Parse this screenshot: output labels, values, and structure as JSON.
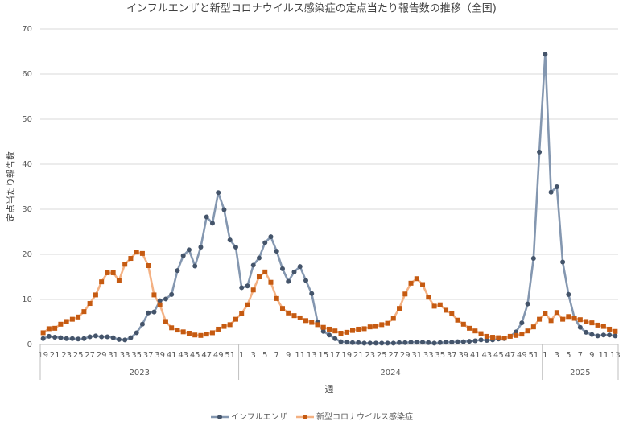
{
  "chart_data": {
    "type": "line",
    "title": "インフルエンザと新型コロナウイルス感染症の定点当たり報告数の推移（全国)",
    "x_label": "週",
    "y_label": "定点当たり報告数",
    "categories": [
      19,
      null,
      21,
      null,
      23,
      null,
      25,
      null,
      27,
      null,
      29,
      null,
      31,
      null,
      33,
      null,
      35,
      null,
      37,
      null,
      39,
      null,
      41,
      null,
      43,
      null,
      45,
      null,
      47,
      null,
      49,
      null,
      51,
      null,
      1,
      null,
      3,
      null,
      5,
      null,
      7,
      null,
      9,
      null,
      11,
      null,
      13,
      null,
      15,
      null,
      17,
      null,
      19,
      null,
      21,
      null,
      23,
      null,
      25,
      null,
      27,
      null,
      29,
      null,
      31,
      null,
      33,
      null,
      35,
      null,
      37,
      null,
      39,
      null,
      41,
      null,
      43,
      null,
      45,
      null,
      47,
      null,
      49,
      null,
      51,
      null,
      1,
      null,
      3,
      null,
      5,
      null,
      7,
      null,
      9,
      null,
      11,
      null,
      13
    ],
    "x_groups": [
      "2023",
      "2024",
      "2025"
    ],
    "series": [
      {
        "name": "インフルエンザ",
        "color": "#8497b0",
        "marker_color": "#44546a",
        "marker": "circle",
        "values": [
          1.3,
          1.8,
          1.6,
          1.5,
          1.3,
          1.3,
          1.2,
          1.3,
          1.7,
          1.9,
          1.7,
          1.7,
          1.5,
          1.1,
          1.0,
          1.5,
          2.6,
          4.5,
          7.0,
          7.2,
          9.7,
          10.1,
          11.1,
          16.4,
          19.7,
          21.0,
          17.4,
          21.6,
          28.3,
          26.9,
          33.7,
          29.9,
          23.2,
          21.6,
          12.6,
          13.0,
          17.6,
          19.2,
          22.6,
          23.9,
          20.7,
          16.8,
          14.0,
          16.1,
          17.3,
          14.2,
          11.3,
          5.0,
          2.9,
          2.1,
          1.3,
          0.6,
          0.5,
          0.4,
          0.4,
          0.3,
          0.3,
          0.3,
          0.3,
          0.3,
          0.3,
          0.4,
          0.4,
          0.5,
          0.5,
          0.5,
          0.4,
          0.3,
          0.4,
          0.5,
          0.5,
          0.6,
          0.6,
          0.7,
          0.8,
          1.0,
          0.9,
          1.0,
          1.2,
          1.3,
          1.8,
          2.8,
          4.8,
          9.0,
          19.1,
          42.7,
          64.4,
          33.8,
          35.0,
          18.3,
          11.1,
          5.9,
          3.8,
          2.7,
          2.2,
          1.9,
          2.1,
          2.1,
          1.9
        ]
      },
      {
        "name": "新型コロナウイルス感染症",
        "color": "#f4b183",
        "marker_color": "#c55a11",
        "marker": "square",
        "values": [
          2.6,
          3.5,
          3.6,
          4.5,
          5.1,
          5.6,
          6.1,
          7.3,
          9.1,
          11.0,
          13.9,
          15.9,
          15.9,
          14.2,
          17.8,
          19.1,
          20.5,
          20.2,
          17.5,
          11.0,
          8.8,
          5.1,
          3.7,
          3.2,
          2.8,
          2.5,
          2.1,
          2.0,
          2.3,
          2.6,
          3.4,
          4.0,
          4.4,
          5.6,
          6.9,
          8.8,
          12.1,
          15.0,
          16.1,
          13.8,
          10.2,
          8.0,
          7.0,
          6.4,
          5.9,
          5.3,
          4.9,
          4.4,
          3.8,
          3.4,
          3.0,
          2.5,
          2.7,
          3.1,
          3.4,
          3.5,
          3.9,
          4.0,
          4.4,
          4.7,
          5.8,
          8.0,
          11.2,
          13.6,
          14.6,
          13.3,
          10.5,
          8.5,
          8.8,
          7.6,
          6.8,
          5.4,
          4.5,
          3.6,
          3.0,
          2.4,
          1.8,
          1.6,
          1.5,
          1.4,
          1.8,
          2.0,
          2.3,
          3.0,
          3.9,
          5.6,
          6.9,
          5.3,
          7.1,
          5.6,
          6.2,
          5.8,
          5.5,
          5.1,
          4.8,
          4.3,
          4.0,
          3.4,
          2.9
        ]
      }
    ],
    "ylim": [
      0,
      70
    ],
    "yticks": [
      0,
      10,
      20,
      30,
      40,
      50,
      60,
      70
    ],
    "grid": true,
    "legend": "bottom"
  }
}
